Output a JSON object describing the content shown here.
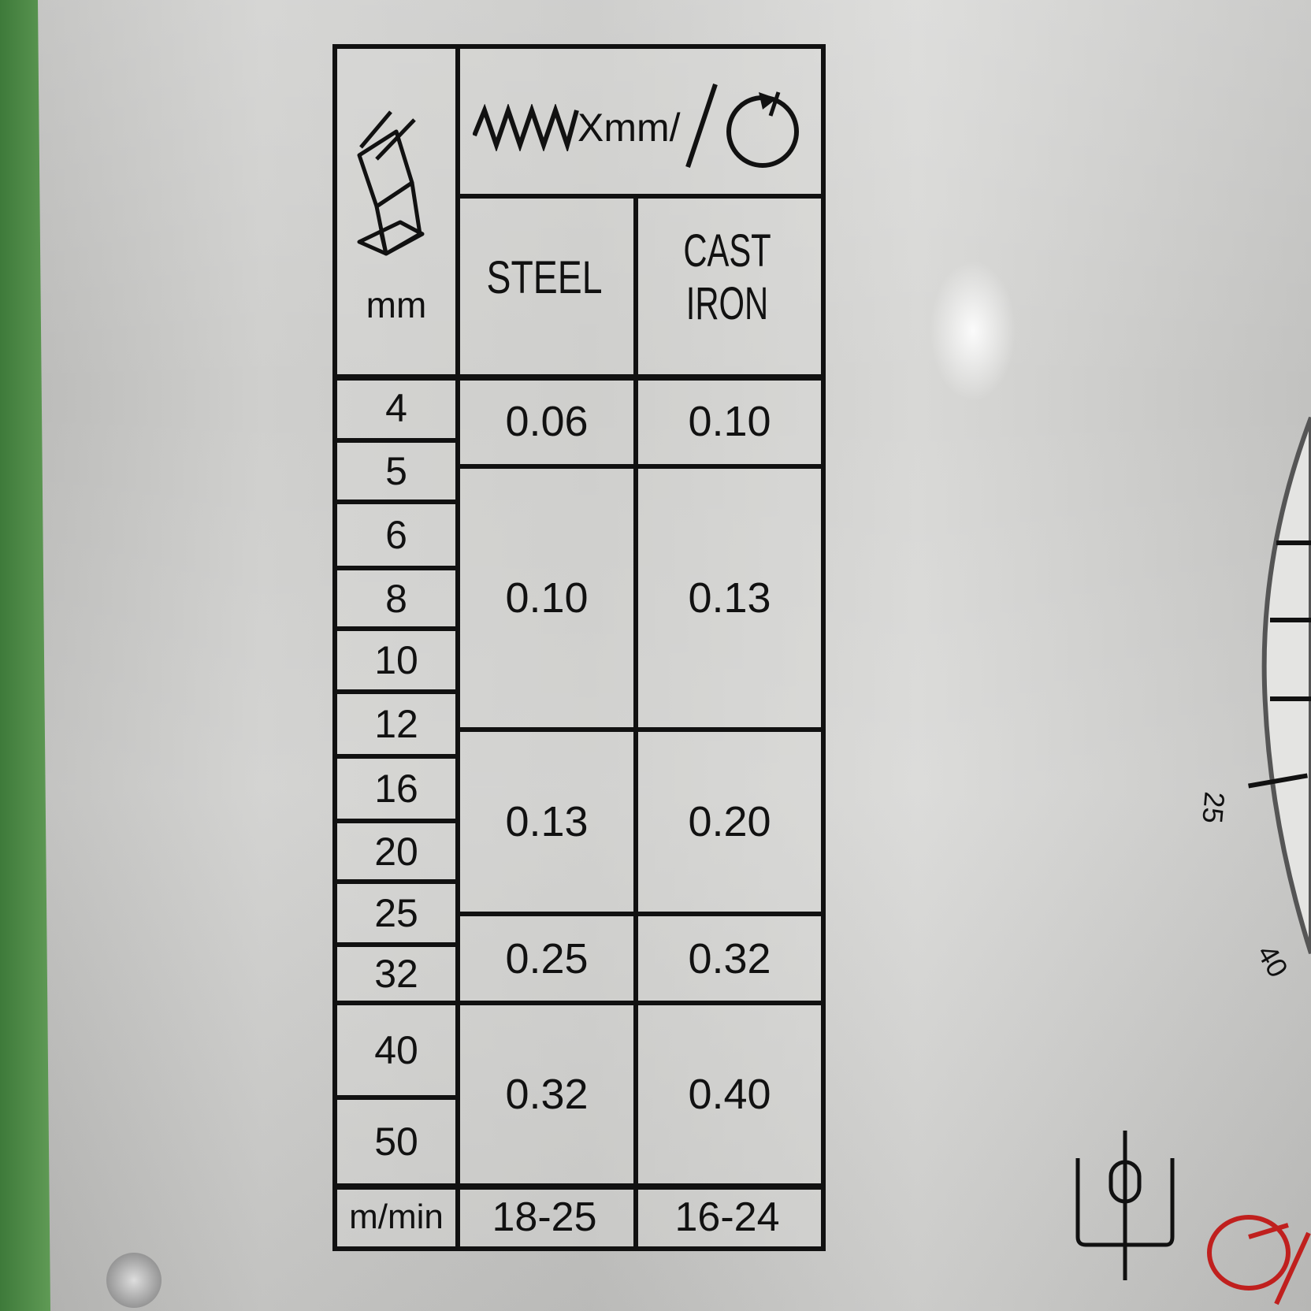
{
  "header": {
    "diameter_unit": "mm",
    "feed_label": "Xmm/",
    "materials": [
      "STEEL",
      "CAST IRON"
    ]
  },
  "diameters": [
    "4",
    "5",
    "6",
    "8",
    "10",
    "12",
    "16",
    "20",
    "25",
    "32",
    "40",
    "50"
  ],
  "feeds": [
    {
      "steel": "0.06",
      "cast_iron": "0.10"
    },
    {
      "steel": "0.10",
      "cast_iron": "0.13"
    },
    {
      "steel": "0.13",
      "cast_iron": "0.20"
    },
    {
      "steel": "0.25",
      "cast_iron": "0.32"
    },
    {
      "steel": "0.32",
      "cast_iron": "0.40"
    }
  ],
  "footer": {
    "unit": "m/min",
    "steel": "18-25",
    "cast_iron": "16-24"
  },
  "dial": {
    "labels": [
      "25",
      "40"
    ]
  },
  "colors": {
    "accent_red": "#c0201e",
    "panel_green": "#4d8a46"
  }
}
